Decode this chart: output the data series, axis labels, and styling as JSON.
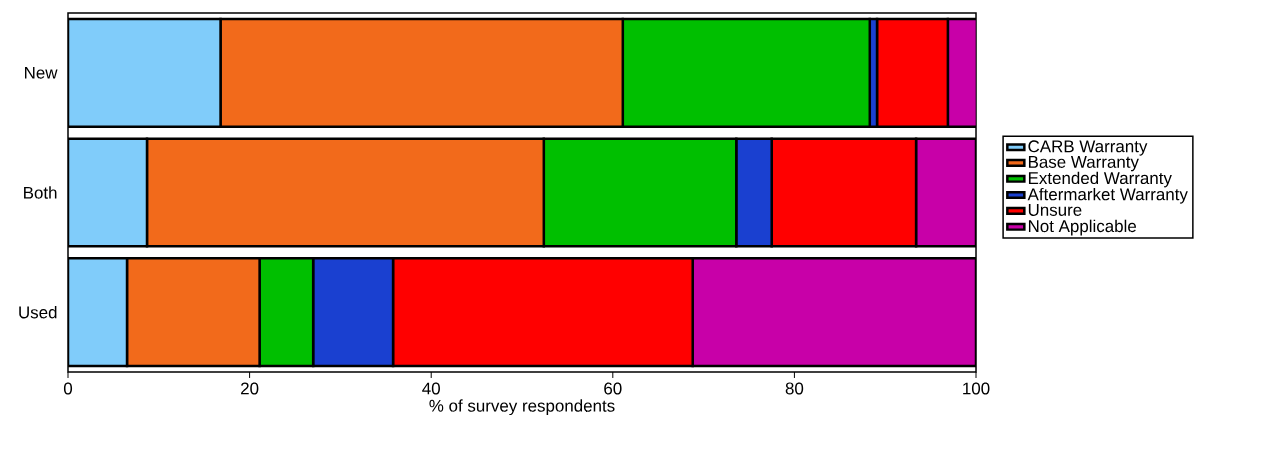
{
  "chart_data": {
    "type": "bar",
    "orientation": "horizontal",
    "stacked": true,
    "categories": [
      "New",
      "Both",
      "Used"
    ],
    "series": [
      {
        "name": "CARB Warranty",
        "color": "#80ccfa",
        "values": [
          16.8,
          8.7,
          6.5
        ]
      },
      {
        "name": "Base Warranty",
        "color": "#f26a1b",
        "values": [
          44.3,
          43.7,
          14.6
        ]
      },
      {
        "name": "Extended Warranty",
        "color": "#00bf00",
        "values": [
          27.2,
          21.2,
          5.9
        ]
      },
      {
        "name": "Aftermarket Warranty",
        "color": "#1a40d0",
        "values": [
          0.8,
          3.9,
          8.8
        ]
      },
      {
        "name": "Unsure",
        "color": "#ff0000",
        "values": [
          7.8,
          15.9,
          33.0
        ]
      },
      {
        "name": "Not Applicable",
        "color": "#c800a8",
        "values": [
          3.2,
          6.6,
          31.2
        ]
      }
    ],
    "xlim": [
      0,
      100
    ],
    "xticks": [
      0,
      20,
      40,
      60,
      80,
      100
    ],
    "xlabel": "% of survey respondents",
    "legend": "right"
  }
}
